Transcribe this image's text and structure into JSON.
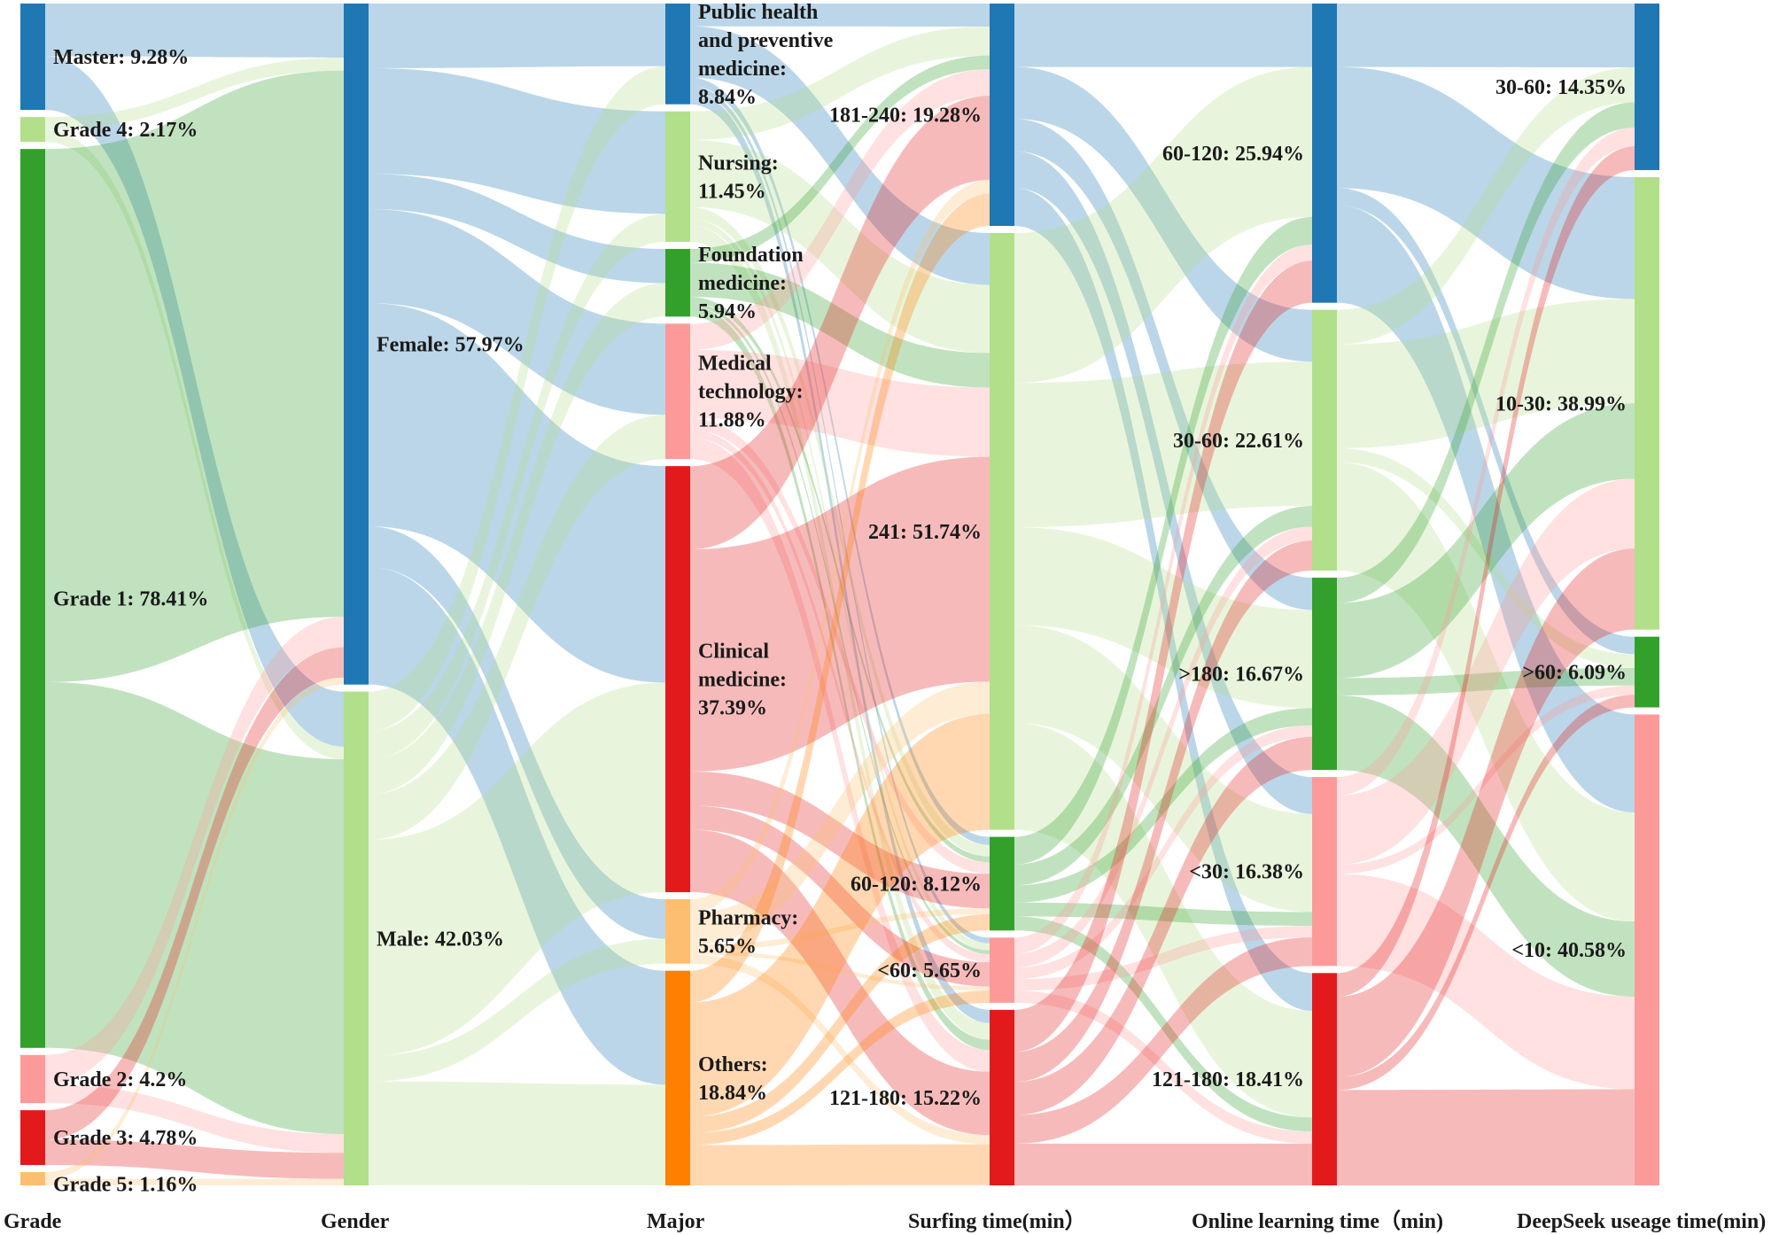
{
  "chart_data": {
    "type": "sankey",
    "title": "",
    "colors": {
      "blue": "#1f77b4",
      "lightgreen": "#b2df8a",
      "green": "#33a02c",
      "pink": "#fb9a99",
      "red": "#e31a1c",
      "lightorange": "#fdbf6f",
      "orange": "#ff7f00"
    },
    "columns": [
      {
        "label": "Grade",
        "nodes": [
          {
            "name": "Master",
            "pct": 9.28,
            "color": "#1f77b4",
            "label": [
              "Master: 9.28%"
            ]
          },
          {
            "name": "Grade 4",
            "pct": 2.17,
            "color": "#b2df8a",
            "label": [
              "Grade 4: 2.17%"
            ]
          },
          {
            "name": "Grade 1",
            "pct": 78.41,
            "color": "#33a02c",
            "label": [
              "Grade 1: 78.41%"
            ]
          },
          {
            "name": "Grade 2",
            "pct": 4.2,
            "color": "#fb9a99",
            "label": [
              "Grade 2: 4.2%"
            ]
          },
          {
            "name": "Grade 3",
            "pct": 4.78,
            "color": "#e31a1c",
            "label": [
              "Grade 3: 4.78%"
            ]
          },
          {
            "name": "Grade 5",
            "pct": 1.16,
            "color": "#fdbf6f",
            "label": [
              "Grade 5: 1.16%"
            ]
          }
        ]
      },
      {
        "label": "Gender",
        "nodes": [
          {
            "name": "Female",
            "pct": 57.97,
            "color": "#1f77b4",
            "label": [
              "Female: 57.97%"
            ]
          },
          {
            "name": "Male",
            "pct": 42.03,
            "color": "#b2df8a",
            "label": [
              "Male: 42.03%"
            ]
          }
        ]
      },
      {
        "label": "Major",
        "nodes": [
          {
            "name": "Public health and preventive medicine",
            "pct": 8.84,
            "color": "#1f77b4",
            "label": [
              "Public health",
              "and preventive",
              "medicine:",
              "8.84%"
            ]
          },
          {
            "name": "Nursing",
            "pct": 11.45,
            "color": "#b2df8a",
            "label": [
              "Nursing:",
              "11.45%"
            ]
          },
          {
            "name": "Foundation medicine",
            "pct": 5.94,
            "color": "#33a02c",
            "label": [
              "Foundation",
              "medicine:",
              "5.94%"
            ]
          },
          {
            "name": "Medical technology",
            "pct": 11.88,
            "color": "#fb9a99",
            "label": [
              "Medical",
              "technology:",
              "11.88%"
            ]
          },
          {
            "name": "Clinical medicine",
            "pct": 37.39,
            "color": "#e31a1c",
            "label": [
              "Clinical",
              "medicine:",
              "37.39%"
            ]
          },
          {
            "name": "Pharmacy",
            "pct": 5.65,
            "color": "#fdbf6f",
            "label": [
              "Pharmacy:",
              "5.65%"
            ]
          },
          {
            "name": "Others",
            "pct": 18.84,
            "color": "#ff7f00",
            "label": [
              "Others:",
              "18.84%"
            ]
          }
        ]
      },
      {
        "label": "Surfing time(min）",
        "nodes": [
          {
            "name": "181-240",
            "pct": 19.28,
            "color": "#1f77b4",
            "label": [
              "181-240: 19.28%"
            ]
          },
          {
            "name": "241",
            "pct": 51.74,
            "color": "#b2df8a",
            "label": [
              "241: 51.74%"
            ]
          },
          {
            "name": "60-120",
            "pct": 8.12,
            "color": "#33a02c",
            "label": [
              "60-120: 8.12%"
            ]
          },
          {
            "name": "<60",
            "pct": 5.65,
            "color": "#fb9a99",
            "label": [
              "<60: 5.65%"
            ]
          },
          {
            "name": "121-180",
            "pct": 15.22,
            "color": "#e31a1c",
            "label": [
              "121-180: 15.22%"
            ]
          }
        ]
      },
      {
        "label": "Online learning time（min)",
        "nodes": [
          {
            "name": "60-120",
            "pct": 25.94,
            "color": "#1f77b4",
            "label": [
              "60-120: 25.94%"
            ]
          },
          {
            "name": "30-60",
            "pct": 22.61,
            "color": "#b2df8a",
            "label": [
              "30-60: 22.61%"
            ]
          },
          {
            "name": ">180",
            "pct": 16.67,
            "color": "#33a02c",
            "label": [
              ">180: 16.67%"
            ]
          },
          {
            "name": "<30",
            "pct": 16.38,
            "color": "#fb9a99",
            "label": [
              "<30: 16.38%"
            ]
          },
          {
            "name": "121-180",
            "pct": 18.41,
            "color": "#e31a1c",
            "label": [
              "121-180: 18.41%"
            ]
          }
        ]
      },
      {
        "label": "DeepSeek useage time(min)",
        "nodes": [
          {
            "name": "30-60",
            "pct": 14.35,
            "color": "#1f77b4",
            "label": [
              "30-60: 14.35%"
            ]
          },
          {
            "name": "10-30",
            "pct": 38.99,
            "color": "#b2df8a",
            "label": [
              "10-30: 38.99%"
            ]
          },
          {
            "name": ">60",
            "pct": 6.09,
            "color": "#33a02c",
            "label": [
              ">60: 6.09%"
            ]
          },
          {
            "name": "<10",
            "pct": 40.58,
            "color": "#fb9a99",
            "label": [
              "<10: 40.58%"
            ]
          }
        ]
      }
    ],
    "links": [
      [
        {
          "from": 0,
          "to": 0,
          "pct": 4.6
        },
        {
          "from": 0,
          "to": 1,
          "pct": 4.68
        },
        {
          "from": 1,
          "to": 0,
          "pct": 1.1
        },
        {
          "from": 1,
          "to": 1,
          "pct": 1.07
        },
        {
          "from": 2,
          "to": 0,
          "pct": 46.5
        },
        {
          "from": 2,
          "to": 1,
          "pct": 31.91
        },
        {
          "from": 3,
          "to": 0,
          "pct": 2.6
        },
        {
          "from": 3,
          "to": 1,
          "pct": 1.6
        },
        {
          "from": 4,
          "to": 0,
          "pct": 2.57
        },
        {
          "from": 4,
          "to": 1,
          "pct": 2.21
        },
        {
          "from": 5,
          "to": 0,
          "pct": 0.6
        },
        {
          "from": 5,
          "to": 1,
          "pct": 0.56
        }
      ],
      [
        {
          "from": 0,
          "to": 0,
          "pct": 5.5
        },
        {
          "from": 0,
          "to": 1,
          "pct": 9.0
        },
        {
          "from": 0,
          "to": 2,
          "pct": 3.0
        },
        {
          "from": 0,
          "to": 3,
          "pct": 8.0
        },
        {
          "from": 0,
          "to": 4,
          "pct": 19.0
        },
        {
          "from": 0,
          "to": 5,
          "pct": 3.47
        },
        {
          "from": 0,
          "to": 6,
          "pct": 10.0
        },
        {
          "from": 1,
          "to": 0,
          "pct": 3.34
        },
        {
          "from": 1,
          "to": 1,
          "pct": 2.45
        },
        {
          "from": 1,
          "to": 2,
          "pct": 2.94
        },
        {
          "from": 1,
          "to": 3,
          "pct": 3.88
        },
        {
          "from": 1,
          "to": 4,
          "pct": 18.39
        },
        {
          "from": 1,
          "to": 5,
          "pct": 2.18
        },
        {
          "from": 1,
          "to": 6,
          "pct": 8.84
        }
      ],
      [
        {
          "from": 0,
          "to": 0,
          "pct": 2.0
        },
        {
          "from": 0,
          "to": 1,
          "pct": 4.5
        },
        {
          "from": 0,
          "to": 2,
          "pct": 0.7
        },
        {
          "from": 0,
          "to": 3,
          "pct": 0.5
        },
        {
          "from": 0,
          "to": 4,
          "pct": 1.14
        },
        {
          "from": 1,
          "to": 0,
          "pct": 2.5
        },
        {
          "from": 1,
          "to": 1,
          "pct": 5.9
        },
        {
          "from": 1,
          "to": 2,
          "pct": 1.0
        },
        {
          "from": 1,
          "to": 3,
          "pct": 0.6
        },
        {
          "from": 1,
          "to": 4,
          "pct": 1.45
        },
        {
          "from": 2,
          "to": 0,
          "pct": 1.2
        },
        {
          "from": 2,
          "to": 1,
          "pct": 3.0
        },
        {
          "from": 2,
          "to": 2,
          "pct": 0.5
        },
        {
          "from": 2,
          "to": 3,
          "pct": 0.34
        },
        {
          "from": 2,
          "to": 4,
          "pct": 0.9
        },
        {
          "from": 3,
          "to": 0,
          "pct": 2.3
        },
        {
          "from": 3,
          "to": 1,
          "pct": 6.0
        },
        {
          "from": 3,
          "to": 2,
          "pct": 1.0
        },
        {
          "from": 3,
          "to": 3,
          "pct": 0.7
        },
        {
          "from": 3,
          "to": 4,
          "pct": 1.88
        },
        {
          "from": 4,
          "to": 0,
          "pct": 7.3
        },
        {
          "from": 4,
          "to": 1,
          "pct": 19.5
        },
        {
          "from": 4,
          "to": 2,
          "pct": 3.0
        },
        {
          "from": 4,
          "to": 3,
          "pct": 2.1
        },
        {
          "from": 4,
          "to": 4,
          "pct": 5.49
        },
        {
          "from": 5,
          "to": 0,
          "pct": 1.2
        },
        {
          "from": 5,
          "to": 1,
          "pct": 2.8
        },
        {
          "from": 5,
          "to": 2,
          "pct": 0.5
        },
        {
          "from": 5,
          "to": 3,
          "pct": 0.35
        },
        {
          "from": 5,
          "to": 4,
          "pct": 0.8
        },
        {
          "from": 6,
          "to": 0,
          "pct": 2.78
        },
        {
          "from": 6,
          "to": 1,
          "pct": 10.04
        },
        {
          "from": 6,
          "to": 2,
          "pct": 1.42
        },
        {
          "from": 6,
          "to": 3,
          "pct": 1.06
        },
        {
          "from": 6,
          "to": 4,
          "pct": 3.54
        }
      ],
      [
        {
          "from": 0,
          "to": 0,
          "pct": 5.5
        },
        {
          "from": 0,
          "to": 1,
          "pct": 4.5
        },
        {
          "from": 0,
          "to": 2,
          "pct": 2.8
        },
        {
          "from": 0,
          "to": 3,
          "pct": 3.2
        },
        {
          "from": 0,
          "to": 4,
          "pct": 3.28
        },
        {
          "from": 1,
          "to": 0,
          "pct": 13.0
        },
        {
          "from": 1,
          "to": 1,
          "pct": 12.5
        },
        {
          "from": 1,
          "to": 2,
          "pct": 8.5
        },
        {
          "from": 1,
          "to": 3,
          "pct": 8.5
        },
        {
          "from": 1,
          "to": 4,
          "pct": 9.24
        },
        {
          "from": 2,
          "to": 0,
          "pct": 2.4
        },
        {
          "from": 2,
          "to": 1,
          "pct": 1.8
        },
        {
          "from": 2,
          "to": 2,
          "pct": 1.5
        },
        {
          "from": 2,
          "to": 3,
          "pct": 1.2
        },
        {
          "from": 2,
          "to": 4,
          "pct": 1.22
        },
        {
          "from": 3,
          "to": 0,
          "pct": 1.4
        },
        {
          "from": 3,
          "to": 1,
          "pct": 1.2
        },
        {
          "from": 3,
          "to": 2,
          "pct": 1.0
        },
        {
          "from": 3,
          "to": 3,
          "pct": 1.0
        },
        {
          "from": 3,
          "to": 4,
          "pct": 1.05
        },
        {
          "from": 4,
          "to": 0,
          "pct": 3.64
        },
        {
          "from": 4,
          "to": 1,
          "pct": 2.61
        },
        {
          "from": 4,
          "to": 2,
          "pct": 2.87
        },
        {
          "from": 4,
          "to": 3,
          "pct": 2.48
        },
        {
          "from": 4,
          "to": 4,
          "pct": 3.62
        }
      ],
      [
        {
          "from": 0,
          "to": 0,
          "pct": 5.5
        },
        {
          "from": 0,
          "to": 1,
          "pct": 10.5
        },
        {
          "from": 0,
          "to": 2,
          "pct": 1.5
        },
        {
          "from": 0,
          "to": 3,
          "pct": 8.44
        },
        {
          "from": 1,
          "to": 0,
          "pct": 3.0
        },
        {
          "from": 1,
          "to": 1,
          "pct": 9.0
        },
        {
          "from": 1,
          "to": 2,
          "pct": 1.2
        },
        {
          "from": 1,
          "to": 3,
          "pct": 9.41
        },
        {
          "from": 2,
          "to": 0,
          "pct": 2.2
        },
        {
          "from": 2,
          "to": 1,
          "pct": 6.5
        },
        {
          "from": 2,
          "to": 2,
          "pct": 1.5
        },
        {
          "from": 2,
          "to": 3,
          "pct": 6.47
        },
        {
          "from": 3,
          "to": 0,
          "pct": 1.6
        },
        {
          "from": 3,
          "to": 1,
          "pct": 6.0
        },
        {
          "from": 3,
          "to": 2,
          "pct": 0.8
        },
        {
          "from": 3,
          "to": 3,
          "pct": 7.98
        },
        {
          "from": 4,
          "to": 0,
          "pct": 2.05
        },
        {
          "from": 4,
          "to": 1,
          "pct": 6.99
        },
        {
          "from": 4,
          "to": 2,
          "pct": 1.09
        },
        {
          "from": 4,
          "to": 3,
          "pct": 8.28
        }
      ]
    ]
  }
}
